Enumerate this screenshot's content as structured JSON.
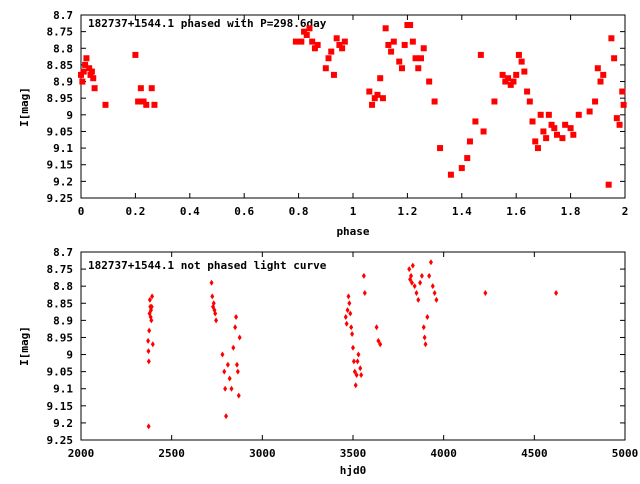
{
  "chart_data": [
    {
      "type": "scatter",
      "title": "182737+1544.1 phased with P=298.6day",
      "xlabel": "phase",
      "ylabel": "I[mag]",
      "xlim": [
        0,
        2
      ],
      "ylim": [
        8.7,
        9.25
      ],
      "y_inverted": true,
      "xticks": [
        0,
        0.2,
        0.4,
        0.6,
        0.8,
        1,
        1.2,
        1.4,
        1.6,
        1.8,
        2
      ],
      "xtick_labels": [
        "0",
        "0.2",
        "0.4",
        "0.6",
        "0.8",
        "1",
        "1.2",
        "1.4",
        "1.6",
        "1.8",
        "2"
      ],
      "yticks": [
        8.7,
        8.75,
        8.8,
        8.85,
        8.9,
        8.95,
        9,
        9.05,
        9.1,
        9.15,
        9.2,
        9.25
      ],
      "ytick_labels": [
        "8.7",
        "8.75",
        "8.8",
        "8.85",
        "8.9",
        "8.95",
        "9",
        "9.05",
        "9.1",
        "9.15",
        "9.2",
        "9.25"
      ],
      "marker_color": "#ff0000",
      "points": [
        [
          0.0,
          8.88
        ],
        [
          0.005,
          8.9
        ],
        [
          0.01,
          8.87
        ],
        [
          0.015,
          8.85
        ],
        [
          0.02,
          8.83
        ],
        [
          0.03,
          8.86
        ],
        [
          0.035,
          8.88
        ],
        [
          0.04,
          8.87
        ],
        [
          0.045,
          8.89
        ],
        [
          0.05,
          8.92
        ],
        [
          0.09,
          8.97
        ],
        [
          0.2,
          8.82
        ],
        [
          0.21,
          8.96
        ],
        [
          0.22,
          8.92
        ],
        [
          0.23,
          8.96
        ],
        [
          0.24,
          8.97
        ],
        [
          0.26,
          8.92
        ],
        [
          0.27,
          8.97
        ],
        [
          0.79,
          8.78
        ],
        [
          0.81,
          8.78
        ],
        [
          0.82,
          8.75
        ],
        [
          0.83,
          8.76
        ],
        [
          0.84,
          8.74
        ],
        [
          0.85,
          8.78
        ],
        [
          0.86,
          8.8
        ],
        [
          0.87,
          8.79
        ],
        [
          0.9,
          8.86
        ],
        [
          0.91,
          8.83
        ],
        [
          0.92,
          8.81
        ],
        [
          0.93,
          8.88
        ],
        [
          0.94,
          8.77
        ],
        [
          0.95,
          8.79
        ],
        [
          0.96,
          8.8
        ],
        [
          0.97,
          8.78
        ],
        [
          1.06,
          8.93
        ],
        [
          1.07,
          8.97
        ],
        [
          1.08,
          8.95
        ],
        [
          1.09,
          8.94
        ],
        [
          1.1,
          8.89
        ],
        [
          1.11,
          8.95
        ],
        [
          1.12,
          8.74
        ],
        [
          1.13,
          8.79
        ],
        [
          1.14,
          8.81
        ],
        [
          1.15,
          8.78
        ],
        [
          1.17,
          8.84
        ],
        [
          1.18,
          8.86
        ],
        [
          1.19,
          8.79
        ],
        [
          1.2,
          8.73
        ],
        [
          1.21,
          8.73
        ],
        [
          1.22,
          8.78
        ],
        [
          1.23,
          8.83
        ],
        [
          1.24,
          8.86
        ],
        [
          1.25,
          8.83
        ],
        [
          1.26,
          8.8
        ],
        [
          1.28,
          8.9
        ],
        [
          1.3,
          8.96
        ],
        [
          1.32,
          9.1
        ],
        [
          1.36,
          9.18
        ],
        [
          1.4,
          9.16
        ],
        [
          1.42,
          9.13
        ],
        [
          1.43,
          9.08
        ],
        [
          1.45,
          9.02
        ],
        [
          1.47,
          8.82
        ],
        [
          1.48,
          9.05
        ],
        [
          1.52,
          8.96
        ],
        [
          1.55,
          8.88
        ],
        [
          1.56,
          8.9
        ],
        [
          1.57,
          8.89
        ],
        [
          1.58,
          8.91
        ],
        [
          1.59,
          8.9
        ],
        [
          1.6,
          8.88
        ],
        [
          1.61,
          8.82
        ],
        [
          1.62,
          8.84
        ],
        [
          1.63,
          8.87
        ],
        [
          1.64,
          8.93
        ],
        [
          1.65,
          8.96
        ],
        [
          1.66,
          9.02
        ],
        [
          1.67,
          9.08
        ],
        [
          1.68,
          9.1
        ],
        [
          1.69,
          9.0
        ],
        [
          1.7,
          9.05
        ],
        [
          1.71,
          9.07
        ],
        [
          1.72,
          9.0
        ],
        [
          1.73,
          9.03
        ],
        [
          1.74,
          9.04
        ],
        [
          1.75,
          9.06
        ],
        [
          1.77,
          9.07
        ],
        [
          1.78,
          9.03
        ],
        [
          1.8,
          9.04
        ],
        [
          1.81,
          9.06
        ],
        [
          1.83,
          9.0
        ],
        [
          1.87,
          8.99
        ],
        [
          1.89,
          8.96
        ],
        [
          1.9,
          8.86
        ],
        [
          1.91,
          8.9
        ],
        [
          1.92,
          8.88
        ],
        [
          1.94,
          9.21
        ],
        [
          1.95,
          8.77
        ],
        [
          1.96,
          8.83
        ],
        [
          1.97,
          9.01
        ],
        [
          1.98,
          9.03
        ],
        [
          1.99,
          8.93
        ],
        [
          1.995,
          8.97
        ]
      ]
    },
    {
      "type": "scatter",
      "title": "182737+1544.1 not phased light curve",
      "xlabel": "hjd0",
      "ylabel": "I[mag]",
      "xlim": [
        2000,
        5000
      ],
      "ylim": [
        8.7,
        9.25
      ],
      "y_inverted": true,
      "xticks": [
        2000,
        2500,
        3000,
        3500,
        4000,
        4500,
        5000
      ],
      "xtick_labels": [
        "2000",
        "2500",
        "3000",
        "3500",
        "4000",
        "4500",
        "5000"
      ],
      "yticks": [
        8.7,
        8.75,
        8.8,
        8.85,
        8.9,
        8.95,
        9,
        9.05,
        9.1,
        9.15,
        9.2,
        9.25
      ],
      "ytick_labels": [
        "8.7",
        "8.75",
        "8.8",
        "8.85",
        "8.9",
        "8.95",
        "9",
        "9.05",
        "9.1",
        "9.15",
        "9.2",
        "9.25"
      ],
      "marker_color": "#ff0000",
      "points": [
        [
          2370,
          8.96
        ],
        [
          2372,
          8.99
        ],
        [
          2374,
          9.02
        ],
        [
          2376,
          8.93
        ],
        [
          2378,
          8.88
        ],
        [
          2380,
          8.84
        ],
        [
          2382,
          8.86
        ],
        [
          2384,
          8.89
        ],
        [
          2386,
          8.87
        ],
        [
          2388,
          8.9
        ],
        [
          2390,
          8.86
        ],
        [
          2392,
          8.83
        ],
        [
          2396,
          8.97
        ],
        [
          2373,
          9.21
        ],
        [
          2720,
          8.79
        ],
        [
          2724,
          8.83
        ],
        [
          2728,
          8.86
        ],
        [
          2732,
          8.85
        ],
        [
          2736,
          8.87
        ],
        [
          2740,
          8.88
        ],
        [
          2745,
          8.9
        ],
        [
          2780,
          9.0
        ],
        [
          2790,
          9.05
        ],
        [
          2795,
          9.1
        ],
        [
          2800,
          9.18
        ],
        [
          2810,
          9.03
        ],
        [
          2820,
          9.07
        ],
        [
          2830,
          9.1
        ],
        [
          2840,
          8.98
        ],
        [
          2850,
          8.92
        ],
        [
          2855,
          8.89
        ],
        [
          2860,
          9.03
        ],
        [
          2865,
          9.05
        ],
        [
          2870,
          9.12
        ],
        [
          2875,
          8.95
        ],
        [
          3460,
          8.89
        ],
        [
          3465,
          8.91
        ],
        [
          3470,
          8.87
        ],
        [
          3475,
          8.83
        ],
        [
          3480,
          8.85
        ],
        [
          3485,
          8.88
        ],
        [
          3490,
          8.92
        ],
        [
          3495,
          8.94
        ],
        [
          3500,
          8.98
        ],
        [
          3505,
          9.02
        ],
        [
          3510,
          9.05
        ],
        [
          3515,
          9.09
        ],
        [
          3520,
          9.06
        ],
        [
          3525,
          9.02
        ],
        [
          3530,
          9.0
        ],
        [
          3540,
          9.04
        ],
        [
          3545,
          9.06
        ],
        [
          3560,
          8.77
        ],
        [
          3565,
          8.82
        ],
        [
          3630,
          8.92
        ],
        [
          3640,
          8.96
        ],
        [
          3650,
          8.97
        ],
        [
          3810,
          8.75
        ],
        [
          3815,
          8.78
        ],
        [
          3820,
          8.77
        ],
        [
          3825,
          8.79
        ],
        [
          3830,
          8.74
        ],
        [
          3840,
          8.8
        ],
        [
          3850,
          8.82
        ],
        [
          3860,
          8.84
        ],
        [
          3870,
          8.79
        ],
        [
          3880,
          8.77
        ],
        [
          3890,
          8.92
        ],
        [
          3895,
          8.95
        ],
        [
          3900,
          8.97
        ],
        [
          3910,
          8.89
        ],
        [
          3920,
          8.77
        ],
        [
          3930,
          8.73
        ],
        [
          3940,
          8.8
        ],
        [
          3950,
          8.82
        ],
        [
          3960,
          8.84
        ],
        [
          4230,
          8.82
        ],
        [
          4620,
          8.82
        ]
      ]
    }
  ]
}
